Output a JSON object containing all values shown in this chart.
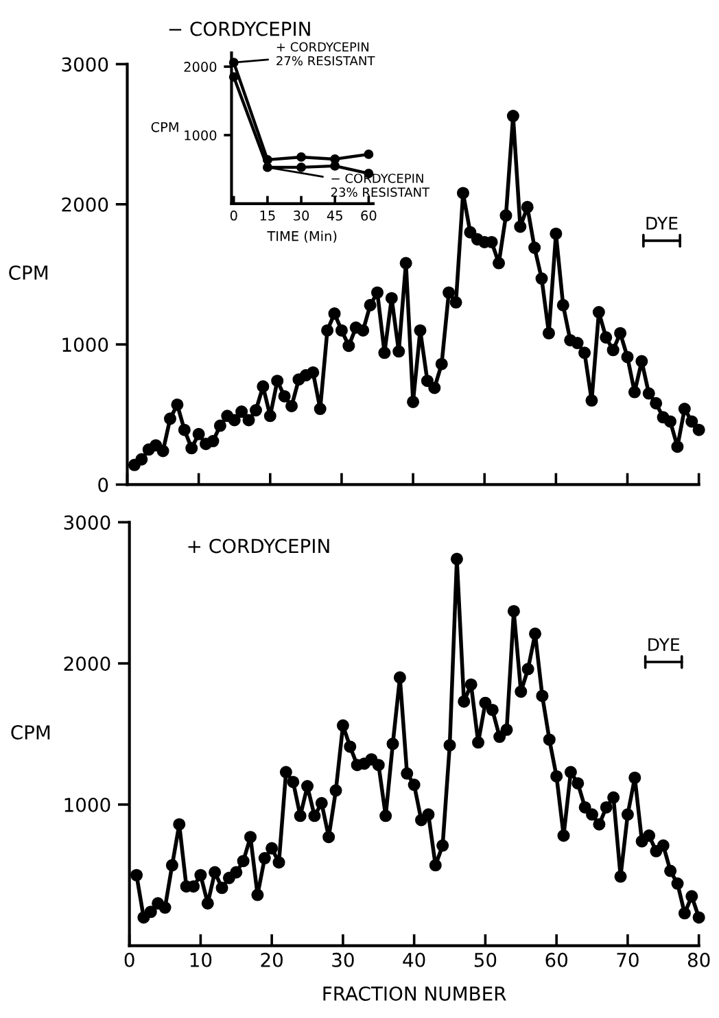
{
  "chart_data": [
    {
      "type": "line",
      "title": "− CORDYCEPIN",
      "ylabel": "CPM",
      "x": [
        1,
        2,
        3,
        4,
        5,
        6,
        7,
        8,
        9,
        10,
        11,
        12,
        13,
        14,
        15,
        16,
        17,
        18,
        19,
        20,
        21,
        22,
        23,
        24,
        25,
        26,
        27,
        28,
        29,
        30,
        31,
        32,
        33,
        34,
        35,
        36,
        37,
        38,
        39,
        40,
        41,
        42,
        43,
        44,
        45,
        46,
        47,
        48,
        49,
        50,
        51,
        52,
        53,
        54,
        55,
        56,
        57,
        58,
        59,
        60,
        61,
        62,
        63,
        64,
        65,
        66,
        67,
        68,
        69,
        70,
        71,
        72,
        73,
        74,
        75,
        76,
        77,
        78,
        79,
        80
      ],
      "series": [
        {
          "color": "#000000",
          "values": [
            140,
            180,
            250,
            280,
            240,
            470,
            570,
            390,
            260,
            360,
            290,
            310,
            420,
            490,
            460,
            520,
            460,
            530,
            700,
            490,
            740,
            630,
            560,
            750,
            780,
            800,
            540,
            1100,
            1220,
            1100,
            990,
            1120,
            1100,
            1280,
            1370,
            940,
            1330,
            950,
            1580,
            590,
            1100,
            740,
            690,
            860,
            1370,
            1300,
            2080,
            1800,
            1750,
            1730,
            1730,
            1580,
            1920,
            2630,
            1840,
            1980,
            1690,
            1470,
            1080,
            1790,
            1280,
            1030,
            1010,
            940,
            600,
            1230,
            1050,
            960,
            1080,
            910,
            660,
            880,
            650,
            580,
            480,
            450,
            270,
            540,
            450,
            390
          ]
        }
      ],
      "xlim": [
        0,
        80
      ],
      "xticks": [
        {
          "value": 0,
          "label": null
        },
        {
          "value": 10,
          "label": null
        },
        {
          "value": 20,
          "label": null
        },
        {
          "value": 30,
          "label": null
        },
        {
          "value": 40,
          "label": null
        },
        {
          "value": 50,
          "label": null
        },
        {
          "value": 60,
          "label": null
        },
        {
          "value": 70,
          "label": null
        },
        {
          "value": 80,
          "label": null
        }
      ],
      "ylim": [
        0,
        3000
      ],
      "yticks": [
        0,
        1000,
        2000,
        3000
      ],
      "tick_labels": "y",
      "annotations": [
        "DYE"
      ],
      "marker": "circle",
      "line_style": "solid",
      "grid": false,
      "legend": false
    },
    {
      "type": "line",
      "xlabel": "TIME (Min)",
      "ylabel": "CPM",
      "x": [
        0,
        15,
        30,
        45,
        60
      ],
      "series": [
        {
          "name": "+ CORDYCEPIN\n27% RESISTANT",
          "color": "#000000",
          "values": [
            2060,
            640,
            680,
            650,
            720
          ]
        },
        {
          "name": "− CORDYCEPIN\n23% RESISTANT",
          "color": "#000000",
          "values": [
            1850,
            530,
            530,
            550,
            440
          ]
        }
      ],
      "xlim": [
        -1,
        62
      ],
      "xticks": [
        0,
        15,
        30,
        45,
        60
      ],
      "ylim": [
        0,
        2200
      ],
      "yticks": [
        1000,
        2000
      ],
      "marker": "circle",
      "line_style": "solid",
      "grid": false
    },
    {
      "type": "line",
      "title": "+ CORDYCEPIN",
      "ylabel": "CPM",
      "xlabel": "FRACTION NUMBER",
      "x": [
        1,
        2,
        3,
        4,
        5,
        6,
        7,
        8,
        9,
        10,
        11,
        12,
        13,
        14,
        15,
        16,
        17,
        18,
        19,
        20,
        21,
        22,
        23,
        24,
        25,
        26,
        27,
        28,
        29,
        30,
        31,
        32,
        33,
        34,
        35,
        36,
        37,
        38,
        39,
        40,
        41,
        42,
        43,
        44,
        45,
        46,
        47,
        48,
        49,
        50,
        51,
        52,
        53,
        54,
        55,
        56,
        57,
        58,
        59,
        60,
        61,
        62,
        63,
        64,
        65,
        66,
        67,
        68,
        69,
        70,
        71,
        72,
        73,
        74,
        75,
        76,
        77,
        78,
        79,
        80
      ],
      "series": [
        {
          "color": "#000000",
          "values": [
            500,
            200,
            240,
            300,
            270,
            570,
            860,
            420,
            420,
            500,
            300,
            520,
            410,
            480,
            520,
            600,
            770,
            360,
            620,
            690,
            590,
            1230,
            1160,
            920,
            1130,
            920,
            1010,
            770,
            1100,
            1560,
            1410,
            1280,
            1290,
            1320,
            1280,
            920,
            1430,
            1900,
            1220,
            1140,
            890,
            930,
            570,
            710,
            1420,
            2740,
            1730,
            1850,
            1440,
            1720,
            1670,
            1480,
            1530,
            2370,
            1800,
            1960,
            2210,
            1770,
            1460,
            1200,
            780,
            1230,
            1150,
            980,
            930,
            860,
            980,
            1050,
            490,
            930,
            1190,
            740,
            780,
            670,
            710,
            530,
            440,
            230,
            350,
            200
          ]
        }
      ],
      "xlim": [
        0,
        80
      ],
      "xticks": [
        0,
        10,
        20,
        30,
        40,
        50,
        60,
        70,
        80
      ],
      "ylim": [
        0,
        3000
      ],
      "yticks": [
        1000,
        2000,
        3000
      ],
      "annotations": [
        "DYE"
      ],
      "marker": "circle",
      "line_style": "solid",
      "grid": false,
      "legend": false
    }
  ]
}
